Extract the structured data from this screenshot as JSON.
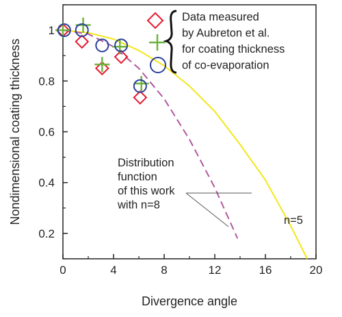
{
  "chart_data": {
    "type": "scatter",
    "xlabel": "Divergence angle",
    "ylabel": "Nondimensional coating thickness",
    "xlim": [
      0,
      20
    ],
    "ylim": [
      0.1,
      1.1
    ],
    "x_ticks": [
      "0",
      "4",
      "8",
      "12",
      "16",
      "20"
    ],
    "x_tick_values": [
      0,
      4,
      8,
      12,
      16,
      20
    ],
    "y_ticks": [
      "0.2",
      "0.4",
      "0.6",
      "0.8",
      "1"
    ],
    "y_tick_values": [
      0.2,
      0.4,
      0.6,
      0.8,
      1.0
    ],
    "grid": false,
    "series": [
      {
        "marker": "diamond",
        "color": "#e8182c",
        "x": [
          0,
          1.5,
          3.1,
          4.6,
          6.1
        ],
        "y": [
          1.0,
          0.955,
          0.85,
          0.895,
          0.735
        ]
      },
      {
        "marker": "plus",
        "color": "#6db33f",
        "x": [
          0,
          1.6,
          3.1,
          4.5,
          6.2
        ],
        "y": [
          1.0,
          1.02,
          0.865,
          0.935,
          0.79
        ]
      },
      {
        "marker": "circle",
        "color": "#2b3f9a",
        "x": [
          0.1,
          1.5,
          3.1,
          4.6,
          6.1
        ],
        "y": [
          1.0,
          1.0,
          0.94,
          0.94,
          0.78
        ]
      },
      {
        "style": "line",
        "color": "#f3e61a",
        "x": [
          0,
          2,
          4,
          6,
          8,
          10,
          12,
          14,
          16,
          18,
          19.3
        ],
        "y": [
          1.0,
          0.99,
          0.965,
          0.92,
          0.86,
          0.78,
          0.68,
          0.55,
          0.41,
          0.23,
          0.1
        ]
      },
      {
        "style": "dashed",
        "color": "#b0569b",
        "x": [
          0,
          2,
          4,
          6,
          8,
          10,
          12,
          13.8
        ],
        "y": [
          1.0,
          0.985,
          0.935,
          0.85,
          0.73,
          0.57,
          0.38,
          0.18
        ]
      }
    ],
    "annotations": {
      "legend_text": [
        "Data measured",
        "by Aubreton et al.",
        "for coating thickness",
        "of co-evaporation"
      ],
      "n8_label": [
        "Distribution",
        "function",
        "of this work",
        "with n=8"
      ],
      "n5_label": "n=5"
    }
  }
}
